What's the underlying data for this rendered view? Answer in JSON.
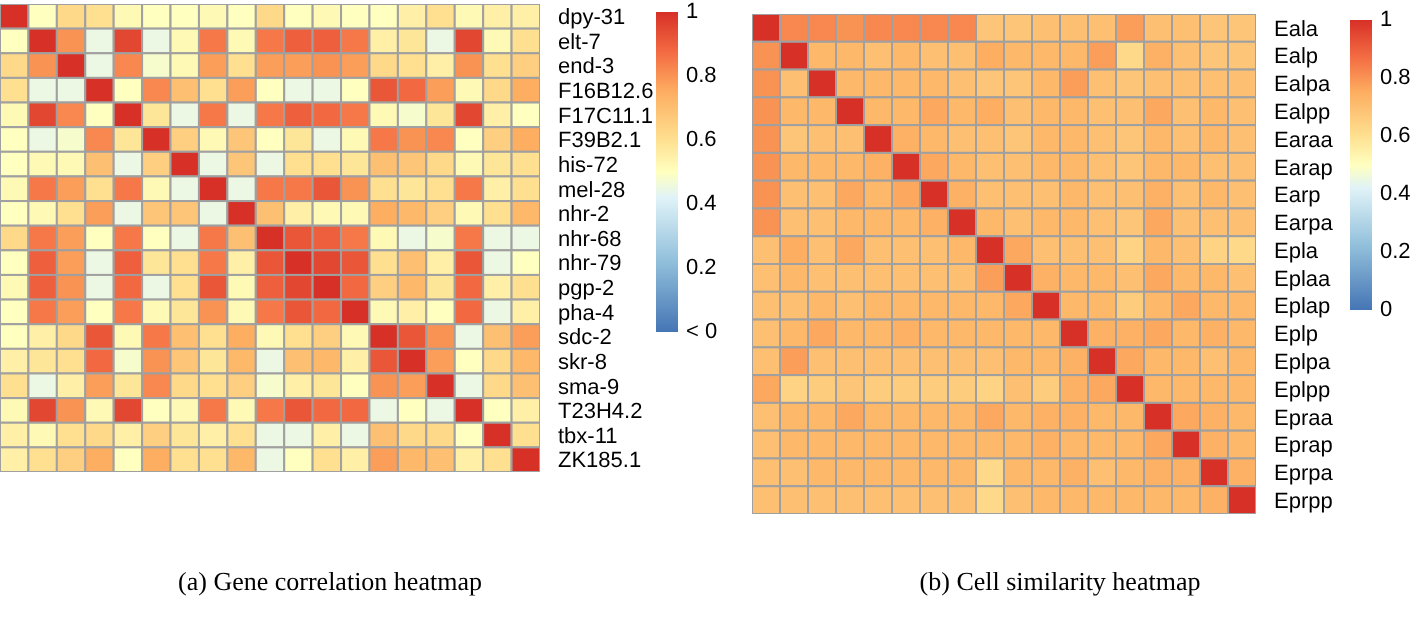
{
  "chart_data": [
    {
      "type": "heatmap",
      "title": "(a) Gene correlation heatmap",
      "tick_labels": "y",
      "clim": [
        0,
        1
      ],
      "cticks": [
        {
          "value": 0,
          "label": "< 0"
        },
        0.2,
        0.4,
        0.6,
        0.8,
        1
      ],
      "categories": [
        null,
        null,
        null,
        null,
        null,
        null,
        null,
        null,
        null,
        null,
        null,
        null,
        null,
        null,
        null,
        null,
        null,
        null,
        null
      ],
      "y_categories": [
        "dpy-31",
        "elt-7",
        "end-3",
        "F16B12.6",
        "F17C11.1",
        "F39B2.1",
        "his-72",
        "mel-28",
        "nhr-2",
        "nhr-68",
        "nhr-79",
        "pgp-2",
        "pha-4",
        "sdc-2",
        "skr-8",
        "sma-9",
        "T23H4.2",
        "tbx-11",
        "ZK185.1"
      ],
      "cells": [
        [
          1,
          0.5,
          0.62,
          0.6,
          0.52,
          0.5,
          0.5,
          0.52,
          0.5,
          0.62,
          0.5,
          0.52,
          0.5,
          0.5,
          0.55,
          0.6,
          0.52,
          0.55,
          0.55
        ],
        [
          0.5,
          1,
          0.8,
          0.45,
          0.95,
          0.45,
          0.52,
          0.85,
          0.52,
          0.85,
          0.9,
          0.9,
          0.85,
          0.55,
          0.58,
          0.45,
          0.95,
          0.52,
          0.6
        ],
        [
          0.62,
          0.8,
          1,
          0.45,
          0.82,
          0.48,
          0.52,
          0.78,
          0.6,
          0.78,
          0.78,
          0.8,
          0.78,
          0.62,
          0.6,
          0.55,
          0.8,
          0.6,
          0.65
        ],
        [
          0.6,
          0.45,
          0.45,
          1,
          0.5,
          0.82,
          0.7,
          0.6,
          0.78,
          0.5,
          0.45,
          0.45,
          0.5,
          0.92,
          0.88,
          0.78,
          0.52,
          0.62,
          0.75
        ],
        [
          0.52,
          0.95,
          0.82,
          0.5,
          1,
          0.58,
          0.45,
          0.85,
          0.45,
          0.85,
          0.9,
          0.88,
          0.85,
          0.52,
          0.48,
          0.58,
          0.95,
          0.55,
          0.5
        ],
        [
          0.5,
          0.45,
          0.48,
          0.82,
          0.58,
          1,
          0.65,
          0.52,
          0.68,
          0.5,
          0.58,
          0.45,
          0.52,
          0.85,
          0.8,
          0.82,
          0.5,
          0.65,
          0.75
        ],
        [
          0.5,
          0.52,
          0.52,
          0.7,
          0.45,
          0.65,
          1,
          0.45,
          0.68,
          0.45,
          0.6,
          0.6,
          0.58,
          0.7,
          0.68,
          0.62,
          0.52,
          0.58,
          0.6
        ],
        [
          0.52,
          0.85,
          0.78,
          0.6,
          0.85,
          0.52,
          0.45,
          1,
          0.45,
          0.85,
          0.85,
          0.92,
          0.8,
          0.6,
          0.58,
          0.6,
          0.85,
          0.55,
          0.6
        ],
        [
          0.5,
          0.52,
          0.6,
          0.78,
          0.45,
          0.68,
          0.68,
          0.45,
          1,
          0.7,
          0.55,
          0.52,
          0.52,
          0.75,
          0.72,
          0.65,
          0.52,
          0.6,
          0.72
        ],
        [
          0.62,
          0.85,
          0.78,
          0.5,
          0.85,
          0.5,
          0.45,
          0.85,
          0.7,
          1,
          0.92,
          0.9,
          0.85,
          0.52,
          0.45,
          0.48,
          0.85,
          0.45,
          0.45
        ],
        [
          0.5,
          0.9,
          0.78,
          0.45,
          0.9,
          0.58,
          0.6,
          0.85,
          0.55,
          0.92,
          1,
          0.95,
          0.92,
          0.6,
          0.7,
          0.55,
          0.92,
          0.45,
          0.5
        ],
        [
          0.52,
          0.9,
          0.8,
          0.45,
          0.88,
          0.45,
          0.6,
          0.92,
          0.52,
          0.9,
          0.95,
          1,
          0.88,
          0.65,
          0.72,
          0.58,
          0.88,
          0.55,
          0.6
        ],
        [
          0.5,
          0.85,
          0.78,
          0.5,
          0.85,
          0.52,
          0.58,
          0.8,
          0.52,
          0.85,
          0.92,
          0.88,
          1,
          0.52,
          0.55,
          0.5,
          0.88,
          0.45,
          0.55
        ],
        [
          0.5,
          0.55,
          0.62,
          0.92,
          0.52,
          0.85,
          0.7,
          0.6,
          0.75,
          0.52,
          0.6,
          0.65,
          0.52,
          1,
          0.92,
          0.8,
          0.45,
          0.7,
          0.78
        ],
        [
          0.55,
          0.58,
          0.6,
          0.88,
          0.48,
          0.8,
          0.68,
          0.58,
          0.72,
          0.45,
          0.7,
          0.72,
          0.55,
          0.92,
          1,
          0.78,
          0.5,
          0.62,
          0.72
        ],
        [
          0.6,
          0.45,
          0.55,
          0.78,
          0.58,
          0.82,
          0.62,
          0.6,
          0.65,
          0.48,
          0.55,
          0.58,
          0.5,
          0.8,
          0.78,
          1,
          0.45,
          0.62,
          0.7
        ],
        [
          0.52,
          0.95,
          0.8,
          0.52,
          0.95,
          0.5,
          0.52,
          0.85,
          0.52,
          0.85,
          0.92,
          0.88,
          0.88,
          0.45,
          0.5,
          0.45,
          1,
          0.5,
          0.55
        ],
        [
          0.55,
          0.52,
          0.6,
          0.62,
          0.55,
          0.65,
          0.58,
          0.55,
          0.6,
          0.45,
          0.45,
          0.55,
          0.45,
          0.7,
          0.62,
          0.62,
          0.5,
          1,
          0.6
        ],
        [
          0.55,
          0.6,
          0.65,
          0.75,
          0.5,
          0.75,
          0.6,
          0.6,
          0.72,
          0.45,
          0.5,
          0.6,
          0.55,
          0.78,
          0.72,
          0.7,
          0.55,
          0.6,
          1
        ]
      ]
    },
    {
      "type": "heatmap",
      "title": "(b) Cell similarity heatmap",
      "tick_labels": "y",
      "clim": [
        0,
        1
      ],
      "cticks": [
        0,
        0.2,
        0.4,
        0.6,
        0.8,
        1
      ],
      "categories": [
        null,
        null,
        null,
        null,
        null,
        null,
        null,
        null,
        null,
        null,
        null,
        null,
        null,
        null,
        null,
        null,
        null,
        null
      ],
      "y_categories": [
        "Eala",
        "Ealp",
        "Ealpa",
        "Ealpp",
        "Earaa",
        "Earap",
        "Earp",
        "Earpa",
        "Epla",
        "Eplaa",
        "Eplap",
        "Eplp",
        "Eplpa",
        "Eplpp",
        "Epraa",
        "Eprap",
        "Eprpa",
        "Eprpp"
      ],
      "cells": [
        [
          1,
          0.82,
          0.82,
          0.8,
          0.82,
          0.82,
          0.82,
          0.82,
          0.68,
          0.68,
          0.7,
          0.7,
          0.7,
          0.78,
          0.7,
          0.7,
          0.68,
          0.68
        ],
        [
          0.8,
          1,
          0.72,
          0.72,
          0.7,
          0.72,
          0.7,
          0.7,
          0.75,
          0.72,
          0.72,
          0.72,
          0.78,
          0.62,
          0.74,
          0.7,
          0.68,
          0.68
        ],
        [
          0.8,
          0.7,
          1,
          0.72,
          0.72,
          0.72,
          0.72,
          0.7,
          0.68,
          0.68,
          0.72,
          0.78,
          0.7,
          0.68,
          0.7,
          0.7,
          0.7,
          0.7
        ],
        [
          0.8,
          0.72,
          0.72,
          1,
          0.72,
          0.72,
          0.76,
          0.72,
          0.75,
          0.7,
          0.72,
          0.72,
          0.7,
          0.7,
          0.76,
          0.7,
          0.72,
          0.7
        ],
        [
          0.8,
          0.68,
          0.7,
          0.7,
          1,
          0.74,
          0.72,
          0.7,
          0.7,
          0.68,
          0.72,
          0.72,
          0.7,
          0.68,
          0.72,
          0.7,
          0.72,
          0.7
        ],
        [
          0.8,
          0.72,
          0.72,
          0.72,
          0.74,
          1,
          0.76,
          0.72,
          0.7,
          0.7,
          0.72,
          0.72,
          0.7,
          0.68,
          0.72,
          0.72,
          0.7,
          0.7
        ],
        [
          0.8,
          0.7,
          0.7,
          0.76,
          0.72,
          0.76,
          1,
          0.74,
          0.7,
          0.7,
          0.7,
          0.72,
          0.7,
          0.7,
          0.74,
          0.7,
          0.72,
          0.7
        ],
        [
          0.8,
          0.7,
          0.7,
          0.72,
          0.72,
          0.72,
          0.74,
          1,
          0.72,
          0.7,
          0.72,
          0.72,
          0.7,
          0.68,
          0.76,
          0.7,
          0.7,
          0.7
        ],
        [
          0.7,
          0.75,
          0.7,
          0.76,
          0.7,
          0.7,
          0.7,
          0.72,
          1,
          0.76,
          0.7,
          0.7,
          0.7,
          0.64,
          0.72,
          0.7,
          0.64,
          0.62
        ],
        [
          0.7,
          0.72,
          0.7,
          0.7,
          0.7,
          0.7,
          0.7,
          0.7,
          0.78,
          1,
          0.74,
          0.72,
          0.72,
          0.7,
          0.76,
          0.72,
          0.72,
          0.7
        ],
        [
          0.7,
          0.7,
          0.72,
          0.7,
          0.72,
          0.72,
          0.72,
          0.72,
          0.72,
          0.76,
          1,
          0.72,
          0.72,
          0.66,
          0.72,
          0.76,
          0.72,
          0.72
        ],
        [
          0.7,
          0.72,
          0.76,
          0.72,
          0.72,
          0.74,
          0.72,
          0.72,
          0.72,
          0.72,
          0.72,
          1,
          0.74,
          0.74,
          0.76,
          0.72,
          0.74,
          0.72
        ],
        [
          0.7,
          0.78,
          0.7,
          0.7,
          0.7,
          0.7,
          0.7,
          0.7,
          0.7,
          0.72,
          0.72,
          0.74,
          1,
          0.76,
          0.72,
          0.72,
          0.7,
          0.72
        ],
        [
          0.76,
          0.64,
          0.66,
          0.68,
          0.66,
          0.66,
          0.66,
          0.66,
          0.64,
          0.7,
          0.66,
          0.74,
          0.76,
          1,
          0.72,
          0.72,
          0.72,
          0.72
        ],
        [
          0.7,
          0.72,
          0.72,
          0.76,
          0.72,
          0.72,
          0.72,
          0.72,
          0.76,
          0.72,
          0.74,
          0.74,
          0.72,
          0.72,
          1,
          0.76,
          0.74,
          0.72
        ],
        [
          0.7,
          0.72,
          0.72,
          0.72,
          0.72,
          0.72,
          0.72,
          0.72,
          0.72,
          0.72,
          0.74,
          0.72,
          0.72,
          0.72,
          0.76,
          1,
          0.74,
          0.72
        ],
        [
          0.7,
          0.7,
          0.72,
          0.72,
          0.72,
          0.72,
          0.72,
          0.72,
          0.62,
          0.72,
          0.72,
          0.74,
          0.7,
          0.72,
          0.74,
          0.74,
          1,
          0.74
        ],
        [
          0.7,
          0.7,
          0.7,
          0.7,
          0.7,
          0.7,
          0.7,
          0.7,
          0.62,
          0.7,
          0.72,
          0.72,
          0.72,
          0.72,
          0.72,
          0.72,
          0.74,
          1
        ]
      ]
    }
  ]
}
